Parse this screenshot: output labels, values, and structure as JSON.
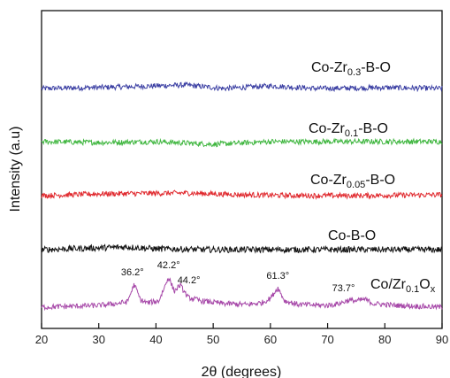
{
  "chart_data": {
    "type": "line",
    "xlabel": "2θ (degrees)",
    "ylabel": "Intensity (a.u)",
    "xlim": [
      20,
      90
    ],
    "xticks": [
      20,
      30,
      40,
      50,
      60,
      70,
      80,
      90
    ],
    "yticks_shown": false,
    "grid": false,
    "series": [
      {
        "name": "Co-Zr0.3-B-O",
        "label_parts": [
          {
            "t": "Co-Zr",
            "sub": false
          },
          {
            "t": "0.3",
            "sub": true
          },
          {
            "t": "-B-O",
            "sub": false
          }
        ],
        "color": "#3b3fa3",
        "features": [
          [
            20,
            0
          ],
          [
            28,
            1
          ],
          [
            35,
            2
          ],
          [
            45,
            4
          ],
          [
            52,
            0
          ],
          [
            60,
            3
          ],
          [
            68,
            0
          ],
          [
            80,
            1
          ],
          [
            90,
            0
          ]
        ],
        "noise": 3
      },
      {
        "name": "Co-Zr0.1-B-O",
        "label_parts": [
          {
            "t": "Co-Zr",
            "sub": false
          },
          {
            "t": "0.1",
            "sub": true
          },
          {
            "t": "-B-O",
            "sub": false
          }
        ],
        "color": "#3fb63f",
        "features": [
          [
            20,
            0
          ],
          [
            30,
            -1
          ],
          [
            40,
            0
          ],
          [
            50,
            -3
          ],
          [
            60,
            0
          ],
          [
            70,
            0
          ],
          [
            80,
            0
          ],
          [
            90,
            0
          ]
        ],
        "noise": 3
      },
      {
        "name": "Co-Zr0.05-B-O",
        "label_parts": [
          {
            "t": "Co-Zr",
            "sub": false
          },
          {
            "t": "0.05",
            "sub": true
          },
          {
            "t": "-B-O",
            "sub": false
          }
        ],
        "color": "#e0272c",
        "features": [
          [
            20,
            -1
          ],
          [
            30,
            1
          ],
          [
            45,
            2
          ],
          [
            55,
            0
          ],
          [
            65,
            -1
          ],
          [
            75,
            -1
          ],
          [
            90,
            0
          ]
        ],
        "noise": 3
      },
      {
        "name": "Co-B-O",
        "label_parts": [
          {
            "t": "Co-B-O",
            "sub": false
          }
        ],
        "color": "#111111",
        "features": [
          [
            20,
            0
          ],
          [
            30,
            2
          ],
          [
            35,
            3
          ],
          [
            40,
            1
          ],
          [
            50,
            0
          ],
          [
            60,
            0
          ],
          [
            70,
            0
          ],
          [
            80,
            0
          ],
          [
            90,
            0
          ]
        ],
        "noise": 3.5
      },
      {
        "name": "Co/Zr0.1Ox",
        "label_parts": [
          {
            "t": "Co/Zr",
            "sub": false
          },
          {
            "t": "0.1",
            "sub": true
          },
          {
            "t": "O",
            "sub": false
          },
          {
            "t": "x",
            "sub": true
          }
        ],
        "color": "#a647a8",
        "features": [
          [
            20,
            0
          ],
          [
            30,
            2
          ],
          [
            33,
            4
          ],
          [
            35,
            6
          ],
          [
            36.2,
            26
          ],
          [
            37.3,
            8
          ],
          [
            38.5,
            5
          ],
          [
            40.5,
            7
          ],
          [
            42.2,
            34
          ],
          [
            43.2,
            18
          ],
          [
            44.2,
            25
          ],
          [
            45.6,
            11
          ],
          [
            48,
            7
          ],
          [
            52,
            4
          ],
          [
            56,
            3
          ],
          [
            58.5,
            5
          ],
          [
            60,
            10
          ],
          [
            61.3,
            22
          ],
          [
            62.5,
            7
          ],
          [
            65,
            3
          ],
          [
            70,
            2
          ],
          [
            72,
            4
          ],
          [
            73.7,
            8
          ],
          [
            75,
            7
          ],
          [
            76.5,
            9
          ],
          [
            78,
            4
          ],
          [
            82,
            2
          ],
          [
            86,
            1
          ],
          [
            90,
            0
          ]
        ],
        "noise": 3,
        "peaks": [
          {
            "x": 36.2,
            "label": "36.2°"
          },
          {
            "x": 42.2,
            "label": "42.2°"
          },
          {
            "x": 44.2,
            "label": "44.2°"
          },
          {
            "x": 61.3,
            "label": "61.3°"
          },
          {
            "x": 73.7,
            "label": "73.7°"
          }
        ]
      }
    ]
  }
}
